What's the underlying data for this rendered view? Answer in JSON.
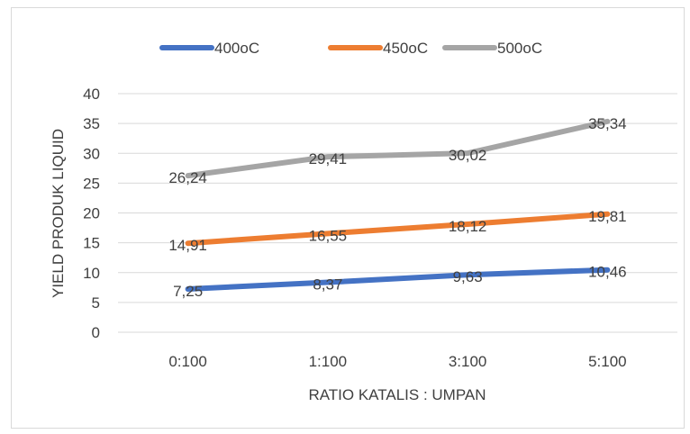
{
  "chart_data": {
    "type": "line",
    "title": "",
    "xlabel": "RATIO KATALIS : UMPAN",
    "ylabel": "YIELD PRODUK LIQUID",
    "categories": [
      "0:100",
      "1:100",
      "3:100",
      "5:100"
    ],
    "ylim": [
      0,
      40
    ],
    "yticks": [
      0,
      5,
      10,
      15,
      20,
      25,
      30,
      35,
      40
    ],
    "grid": true,
    "legend_position": "top",
    "series": [
      {
        "name": "400oC",
        "color": "#4472C4",
        "values": [
          7.25,
          8.37,
          9.63,
          10.46
        ],
        "labels": [
          "7,25",
          "8,37",
          "9,63",
          "10,46"
        ]
      },
      {
        "name": "450oC",
        "color": "#ED7D31",
        "values": [
          14.91,
          16.55,
          18.12,
          19.81
        ],
        "labels": [
          "14,91",
          "16,55",
          "18,12",
          "19,81"
        ]
      },
      {
        "name": "500oC",
        "color": "#A5A5A5",
        "values": [
          26.24,
          29.41,
          30.02,
          35.34
        ],
        "labels": [
          "26,24",
          "29,41",
          "30,02",
          "35,34"
        ]
      }
    ]
  }
}
